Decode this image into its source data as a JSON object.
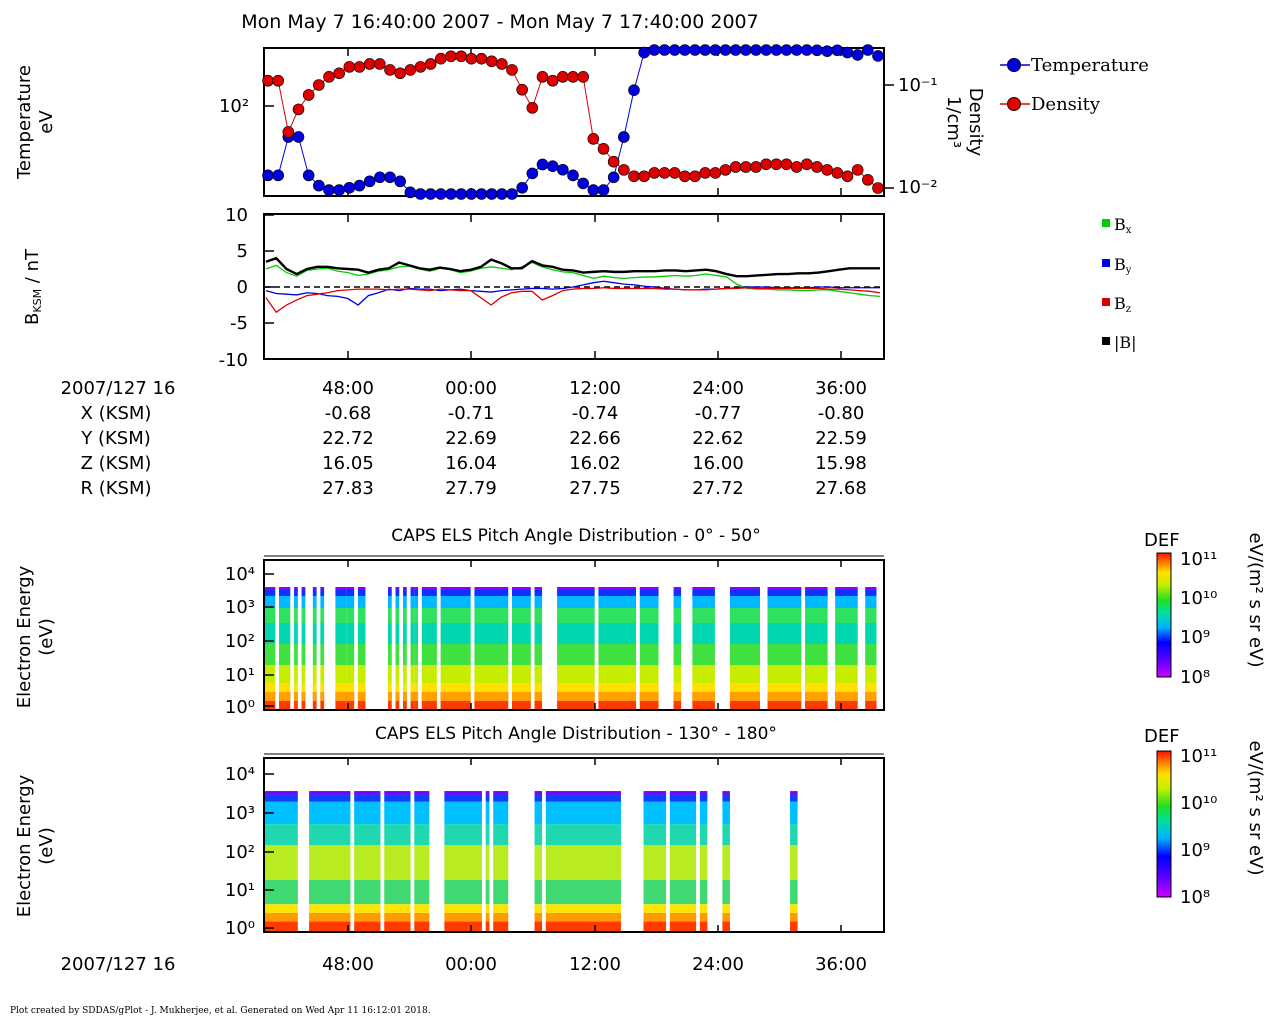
{
  "window": {
    "title": "Mon May 7 16:40:00 2007 - Mon May 7 17:40:00 2007",
    "footer": "Plot created by SDDAS/gPlot - J. Mukherjee, et al.  Generated on Wed Apr 11 16:12:01 2018."
  },
  "colors": {
    "temperature": "#0000dd",
    "density": "#dd0000",
    "bx": "#00cc00",
    "by": "#0000dd",
    "bz": "#dd0000",
    "b_total": "#000000"
  },
  "ephemeris": {
    "labels": [
      "2007/127 16",
      "X (KSM)",
      "Y (KSM)",
      "Z (KSM)",
      "R (KSM)"
    ],
    "times": [
      "48:00",
      "00:00",
      "12:00",
      "24:00",
      "36:00"
    ],
    "rows": [
      [
        "-0.68",
        "-0.71",
        "-0.74",
        "-0.77",
        "-0.80"
      ],
      [
        "22.72",
        "22.69",
        "22.66",
        "22.62",
        "22.59"
      ],
      [
        "16.05",
        "16.04",
        "16.02",
        "16.00",
        "15.98"
      ],
      [
        "27.83",
        "27.79",
        "27.75",
        "27.72",
        "27.68"
      ]
    ]
  },
  "chart_data": [
    {
      "type": "scatter",
      "panel": "temperature-density",
      "ylabel": "Temperature eV",
      "ylabel_lines": [
        "Temperature",
        "eV"
      ],
      "y2label_lines": [
        "Density",
        "1/cm³"
      ],
      "yticks": [
        "10²"
      ],
      "y2ticks": [
        "10⁻¹",
        "10⁻²"
      ],
      "ylog": true,
      "legend_position": "right",
      "series": [
        {
          "name": "Temperature",
          "color": "#0000dd",
          "x": [
            0,
            1,
            2,
            3,
            4,
            5,
            6,
            7,
            8,
            9,
            10,
            11,
            12,
            13,
            14,
            15,
            16,
            17,
            18,
            19,
            20,
            21,
            22,
            23,
            24,
            25,
            26,
            27,
            28,
            29,
            30,
            31,
            32,
            33,
            34,
            35,
            36,
            37,
            38,
            39,
            40,
            41,
            42,
            43,
            44,
            45,
            46,
            47,
            48,
            49,
            50,
            51,
            52,
            53,
            54,
            55,
            56,
            57,
            58,
            59,
            60
          ],
          "y": [
            45,
            45,
            70,
            70,
            45,
            40,
            38,
            38,
            39,
            40,
            42,
            44,
            44,
            42,
            37,
            33,
            32,
            32,
            32,
            32,
            32,
            32,
            32,
            33,
            35,
            39,
            46,
            51,
            50,
            48,
            45,
            41,
            38,
            38,
            44,
            70,
            120,
            185,
            200,
            205,
            210,
            210,
            205,
            205,
            205,
            205,
            205,
            200,
            200,
            200,
            198,
            197,
            195,
            193,
            190,
            188,
            190,
            185,
            180,
            200,
            178
          ]
        },
        {
          "name": "Density",
          "color": "#dd0000",
          "x": [
            0,
            1,
            2,
            3,
            4,
            5,
            6,
            7,
            8,
            9,
            10,
            11,
            12,
            13,
            14,
            15,
            16,
            17,
            18,
            19,
            20,
            21,
            22,
            23,
            24,
            25,
            26,
            27,
            28,
            29,
            30,
            31,
            32,
            33,
            34,
            35,
            36,
            37,
            38,
            39,
            40,
            41,
            42,
            43,
            44,
            45,
            46,
            47,
            48,
            49,
            50,
            51,
            52,
            53,
            54,
            55,
            56,
            57,
            58,
            59,
            60
          ],
          "y": [
            0.11,
            0.11,
            0.035,
            0.058,
            0.08,
            0.1,
            0.12,
            0.13,
            0.15,
            0.15,
            0.16,
            0.16,
            0.14,
            0.13,
            0.14,
            0.15,
            0.16,
            0.18,
            0.19,
            0.19,
            0.18,
            0.18,
            0.17,
            0.16,
            0.14,
            0.09,
            0.06,
            0.12,
            0.11,
            0.12,
            0.12,
            0.12,
            0.03,
            0.024,
            0.018,
            0.015,
            0.013,
            0.013,
            0.014,
            0.014,
            0.014,
            0.013,
            0.013,
            0.014,
            0.014,
            0.015,
            0.016,
            0.016,
            0.016,
            0.017,
            0.017,
            0.017,
            0.016,
            0.017,
            0.016,
            0.015,
            0.014,
            0.013,
            0.015,
            0.012,
            0.01
          ]
        }
      ]
    },
    {
      "type": "line",
      "panel": "magnetic-field",
      "ylabel": "BKSM / nT",
      "ylabel_main": "B",
      "ylabel_sub": "KSM",
      "ylabel_rest": " / nT",
      "ylim": [
        -10,
        10
      ],
      "yticks": [
        "10",
        "5",
        "0",
        "-5",
        "-10"
      ],
      "xticks": [
        "48:00",
        "00:00",
        "12:00",
        "24:00",
        "36:00"
      ],
      "legend_position": "right",
      "series": [
        {
          "name": "B",
          "sub": "x",
          "color": "#00cc00",
          "values": [
            2.5,
            3.0,
            2.0,
            1.5,
            2.3,
            2.5,
            2.6,
            2.2,
            2.0,
            1.6,
            1.8,
            2.2,
            2.4,
            2.8,
            2.9,
            2.5,
            2.2,
            2.6,
            2.4,
            2.0,
            2.2,
            2.6,
            2.8,
            2.6,
            2.4,
            2.8,
            3.4,
            2.8,
            2.4,
            2.1,
            2.0,
            1.6,
            1.2,
            1.5,
            1.3,
            1.2,
            1.3,
            1.4,
            1.4,
            1.5,
            1.6,
            1.5,
            1.6,
            1.8,
            1.6,
            1.4,
            0.4,
            -0.2,
            -0.3,
            -0.3,
            -0.4,
            -0.4,
            -0.5,
            -0.5,
            -0.4,
            -0.4,
            -0.6,
            -0.8,
            -1.0,
            -1.2,
            -1.3
          ]
        },
        {
          "name": "B",
          "sub": "y",
          "color": "#0000dd",
          "values": [
            -0.5,
            -0.9,
            -1.0,
            -1.1,
            -0.8,
            -0.9,
            -1.2,
            -1.3,
            -1.6,
            -2.5,
            -1.2,
            -0.8,
            -0.3,
            -0.5,
            -0.2,
            -0.3,
            -0.3,
            -0.5,
            -0.4,
            -0.3,
            -0.5,
            -0.6,
            -0.7,
            -0.5,
            -0.4,
            -0.3,
            -0.2,
            -0.2,
            -0.3,
            -0.2,
            0.0,
            0.3,
            0.6,
            0.8,
            0.6,
            0.4,
            0.3,
            0.1,
            0.0,
            -0.2,
            -0.3,
            -0.4,
            -0.4,
            -0.3,
            -0.3,
            -0.2,
            -0.1,
            0.0,
            0.0,
            0.0,
            -0.1,
            -0.1,
            -0.1,
            -0.1,
            0.0,
            0.0,
            -0.1,
            -0.1,
            -0.1,
            -0.1,
            -0.1
          ]
        },
        {
          "name": "B",
          "sub": "z",
          "color": "#dd0000",
          "values": [
            -1.5,
            -3.5,
            -2.5,
            -1.8,
            -1.2,
            -1.0,
            -0.8,
            -0.5,
            -0.4,
            -0.3,
            -0.3,
            -0.3,
            -0.4,
            -0.3,
            -0.3,
            -0.4,
            -0.5,
            -0.3,
            -0.4,
            -0.5,
            -0.5,
            -1.5,
            -2.5,
            -1.4,
            -0.8,
            -0.6,
            -0.6,
            -1.8,
            -1.2,
            -0.5,
            -0.3,
            -0.2,
            -0.2,
            -0.1,
            -0.2,
            -0.2,
            -0.2,
            -0.2,
            -0.2,
            -0.3,
            -0.3,
            -0.4,
            -0.4,
            -0.4,
            -0.3,
            -0.2,
            -0.2,
            -0.1,
            -0.2,
            -0.2,
            -0.2,
            -0.2,
            -0.2,
            -0.2,
            -0.2,
            -0.3,
            -0.3,
            -0.4,
            -0.5,
            -0.6,
            -0.8
          ]
        },
        {
          "name": "|B|",
          "sub": "",
          "color": "#000000",
          "values": [
            3.5,
            4.0,
            2.5,
            1.8,
            2.5,
            2.8,
            2.8,
            2.6,
            2.5,
            2.4,
            2.0,
            2.4,
            2.6,
            3.4,
            3.0,
            2.6,
            2.4,
            2.7,
            2.5,
            2.2,
            2.4,
            2.8,
            3.8,
            3.3,
            2.6,
            2.6,
            3.6,
            3.0,
            2.8,
            2.4,
            2.3,
            2.0,
            2.1,
            2.2,
            2.1,
            2.1,
            2.2,
            2.2,
            2.2,
            2.3,
            2.3,
            2.2,
            2.3,
            2.4,
            2.2,
            1.8,
            1.5,
            1.5,
            1.6,
            1.7,
            1.8,
            1.8,
            1.9,
            1.9,
            2.0,
            2.2,
            2.4,
            2.6,
            2.6,
            2.6,
            2.6
          ]
        }
      ]
    },
    {
      "type": "heatmap",
      "panel": "els-0-50",
      "title": "CAPS ELS Pitch Angle Distribution - 0° - 50°",
      "ylabel_lines": [
        "Electron Energy",
        "(eV)"
      ],
      "yticks": [
        "10⁴",
        "10³",
        "10²",
        "10¹",
        "10⁰"
      ],
      "ylog": true,
      "colorbar": {
        "label": "DEF",
        "units": "eV/(m² s sr eV)",
        "ticks": [
          "10¹¹",
          "10¹⁰",
          "10⁹",
          "10⁸"
        ]
      },
      "data_windows": [
        [
          0,
          3
        ],
        [
          4,
          7
        ],
        [
          8,
          9
        ],
        [
          10,
          11
        ],
        [
          13,
          14
        ],
        [
          15,
          16
        ],
        [
          19,
          22
        ],
        [
          22,
          24
        ],
        [
          25,
          27
        ],
        [
          33,
          34
        ],
        [
          35,
          36
        ],
        [
          37,
          38
        ],
        [
          39,
          39.5
        ],
        [
          40,
          41
        ],
        [
          42,
          46
        ],
        [
          47,
          55
        ],
        [
          56,
          65
        ],
        [
          66,
          71
        ],
        [
          72,
          74
        ],
        [
          78,
          88
        ],
        [
          89,
          99
        ],
        [
          100,
          105
        ],
        [
          109,
          111
        ],
        [
          114,
          120
        ],
        [
          124,
          132
        ],
        [
          134,
          143
        ],
        [
          144,
          150
        ],
        [
          152,
          158
        ],
        [
          160,
          163
        ]
      ]
    },
    {
      "type": "heatmap",
      "panel": "els-130-180",
      "title": "CAPS ELS Pitch Angle Distribution - 130° - 180°",
      "ylabel_lines": [
        "Electron Energy",
        "(eV)"
      ],
      "yticks": [
        "10⁴",
        "10³",
        "10²",
        "10¹",
        "10⁰"
      ],
      "ylog": true,
      "xticks": [
        "48:00",
        "00:00",
        "12:00",
        "24:00",
        "36:00"
      ],
      "xlabel_left": "2007/127 16",
      "colorbar": {
        "label": "DEF",
        "units": "eV/(m² s sr eV)",
        "ticks": [
          "10¹¹",
          "10¹⁰",
          "10⁹",
          "10⁸"
        ]
      },
      "data_windows": [
        [
          0,
          9
        ],
        [
          12,
          23
        ],
        [
          24,
          31
        ],
        [
          32,
          39
        ],
        [
          40,
          44
        ],
        [
          48,
          58
        ],
        [
          59,
          60
        ],
        [
          61,
          65
        ],
        [
          72,
          74
        ],
        [
          75,
          95
        ],
        [
          101,
          107
        ],
        [
          108,
          115
        ],
        [
          116,
          118
        ],
        [
          122,
          124
        ],
        [
          140,
          142
        ]
      ]
    }
  ]
}
